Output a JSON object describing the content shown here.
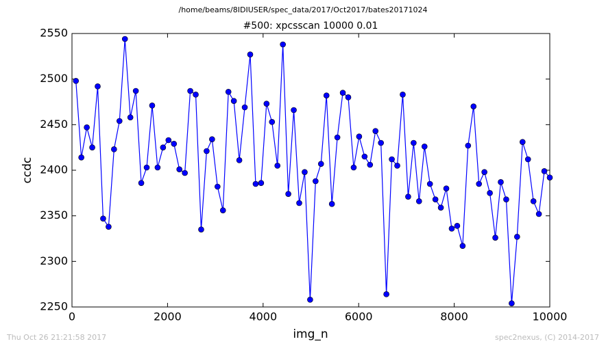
{
  "chart_data": {
    "type": "line",
    "header": "/home/beams/8IDIUSER/spec_data/2017/Oct2017/bates20171024",
    "title": "#500: xpcsscan 10000 0.01",
    "x_label": "img_n",
    "y_label": "ccdc",
    "footer_left": "Thu Oct 26 21:21:58 2017",
    "footer_right": "spec2nexus, (C) 2014-2017",
    "xlim": [
      0,
      10000
    ],
    "ylim": [
      2250,
      2550
    ],
    "xticks": [
      0,
      2000,
      4000,
      6000,
      8000,
      10000
    ],
    "yticks": [
      2250,
      2300,
      2350,
      2400,
      2450,
      2500,
      2550
    ],
    "x": [
      82,
      196,
      310,
      424,
      538,
      652,
      766,
      880,
      994,
      1108,
      1222,
      1336,
      1450,
      1564,
      1678,
      1792,
      1906,
      2020,
      2134,
      2248,
      2362,
      2476,
      2590,
      2704,
      2818,
      2932,
      3046,
      3160,
      3274,
      3388,
      3502,
      3616,
      3730,
      3844,
      3958,
      4072,
      4186,
      4300,
      4414,
      4528,
      4642,
      4756,
      4870,
      4984,
      5098,
      5212,
      5326,
      5440,
      5554,
      5668,
      5782,
      5896,
      6010,
      6124,
      6238,
      6352,
      6466,
      6580,
      6694,
      6808,
      6922,
      7036,
      7150,
      7264,
      7378,
      7492,
      7606,
      7720,
      7834,
      7948,
      8062,
      8176,
      8290,
      8404,
      8518,
      8632,
      8746,
      8860,
      8974,
      9088,
      9202,
      9316,
      9430,
      9544,
      9658,
      9772,
      9886,
      10000
    ],
    "series": [
      {
        "color": "#0000ff",
        "values": [
          2498,
          2414,
          2447,
          2425,
          2492,
          2347,
          2338,
          2423,
          2454,
          2544,
          2458,
          2487,
          2386,
          2403,
          2471,
          2403,
          2425,
          2433,
          2429,
          2401,
          2397,
          2487,
          2483,
          2335,
          2421,
          2434,
          2382,
          2356,
          2486,
          2476,
          2411,
          2469,
          2527,
          2385,
          2386,
          2473,
          2453,
          2405,
          2538,
          2374,
          2466,
          2364,
          2398,
          2258,
          2388,
          2407,
          2482,
          2363,
          2436,
          2485,
          2480,
          2403,
          2437,
          2415,
          2406,
          2443,
          2430,
          2264,
          2412,
          2405,
          2483,
          2371,
          2430,
          2366,
          2426,
          2385,
          2368,
          2359,
          2380,
          2336,
          2339,
          2317,
          2427,
          2470,
          2385,
          2398,
          2375,
          2326,
          2387,
          2368,
          2254,
          2327,
          2431,
          2412,
          2366,
          2352,
          2399,
          2392
        ]
      }
    ]
  }
}
